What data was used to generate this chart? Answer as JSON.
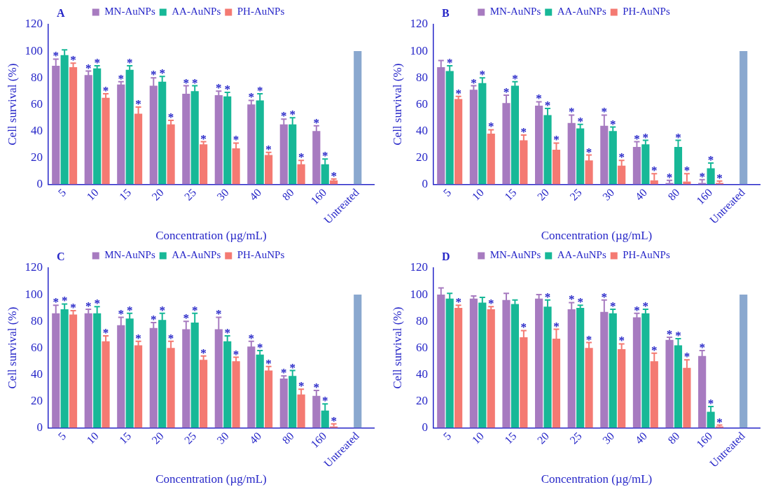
{
  "chart_data": [
    {
      "type": "bar",
      "title": "A",
      "xlabel": "Concentration (µg/mL)",
      "ylabel": "Cell survival (%)",
      "categories": [
        "5",
        "10",
        "15",
        "20",
        "25",
        "30",
        "40",
        "80",
        "160",
        "Untreated"
      ],
      "ylim": [
        0,
        120
      ],
      "yticks": [
        0,
        20,
        40,
        60,
        80,
        100,
        120
      ],
      "grid": false,
      "legend": "top",
      "series": [
        {
          "name": "MN-AuNPs",
          "color": "#a77bc0",
          "values": [
            89,
            82,
            75,
            74,
            68,
            67,
            60,
            45,
            40,
            null
          ],
          "errors": [
            5,
            3,
            2,
            6,
            6,
            3,
            3,
            4,
            4,
            null
          ],
          "value_labels": [
            "*",
            "*",
            "*",
            "*",
            "*",
            "*",
            "*",
            "*",
            "*",
            null
          ]
        },
        {
          "name": "AA-AuNPs",
          "color": "#17b897",
          "values": [
            97,
            87,
            86,
            77,
            70,
            66,
            63,
            45,
            15,
            null
          ],
          "errors": [
            4,
            2,
            3,
            4,
            4,
            3,
            5,
            5,
            4,
            null
          ],
          "value_labels": [
            null,
            "*",
            "*",
            "*",
            "*",
            "*",
            "*",
            "*",
            "*",
            null
          ]
        },
        {
          "name": "PH-AuNPs",
          "color": "#f47a72",
          "values": [
            88,
            65,
            53,
            45,
            30,
            27,
            22,
            15,
            3,
            null
          ],
          "errors": [
            3,
            3,
            5,
            3,
            2,
            4,
            2,
            3,
            1,
            null
          ],
          "value_labels": [
            "*",
            "*",
            "*",
            "*",
            "*",
            "*",
            "*",
            "*",
            "*",
            null
          ]
        },
        {
          "color": "#8aa8cf",
          "values": [
            null,
            null,
            null,
            null,
            null,
            null,
            null,
            null,
            null,
            100
          ]
        }
      ]
    },
    {
      "type": "bar",
      "title": "B",
      "xlabel": "Concentration (µg/mL)",
      "ylabel": "Cell survival (%)",
      "categories": [
        "5",
        "10",
        "15",
        "20",
        "25",
        "30",
        "40",
        "80",
        "160",
        "Untreated"
      ],
      "ylim": [
        0,
        120
      ],
      "yticks": [
        0,
        20,
        40,
        60,
        80,
        100,
        120
      ],
      "grid": false,
      "legend": "top",
      "series": [
        {
          "name": "MN-AuNPs",
          "color": "#a77bc0",
          "values": [
            88,
            71,
            61,
            59,
            46,
            44,
            28,
            1,
            1,
            null
          ],
          "errors": [
            5,
            3,
            6,
            3,
            6,
            8,
            4,
            [
              1,
              3
            ],
            [
              1,
              3.5
            ],
            null
          ],
          "value_labels": [
            null,
            "*",
            "*",
            "*",
            "*",
            "*",
            "*",
            "*",
            "*",
            null
          ]
        },
        {
          "name": "AA-AuNPs",
          "color": "#17b897",
          "values": [
            85,
            76,
            74,
            52,
            42,
            40,
            30,
            28,
            12,
            null
          ],
          "errors": [
            4,
            4,
            3,
            5,
            3,
            3,
            3,
            5,
            4,
            null
          ],
          "value_labels": [
            "*",
            "*",
            "*",
            "*",
            "*",
            "*",
            "*",
            "*",
            "*",
            null
          ]
        },
        {
          "name": "PH-AuNPs",
          "color": "#f47a72",
          "values": [
            64,
            38,
            33,
            26,
            18,
            14,
            3,
            2,
            1,
            null
          ],
          "errors": [
            2,
            3,
            4,
            5,
            4,
            4,
            [
              3,
              8
            ],
            [
              2,
              8
            ],
            [
              1,
              2.5
            ],
            null
          ],
          "value_labels": [
            "*",
            "*",
            "*",
            "*",
            "*",
            "*",
            "*",
            "*",
            "*",
            null
          ]
        },
        {
          "color": "#8aa8cf",
          "values": [
            null,
            null,
            null,
            null,
            null,
            null,
            null,
            null,
            null,
            100
          ]
        }
      ]
    },
    {
      "type": "bar",
      "title": "C",
      "xlabel": "Concentration (µg/mL)",
      "ylabel": "Cell survival (%)",
      "categories": [
        "5",
        "10",
        "15",
        "20",
        "25",
        "30",
        "40",
        "80",
        "160",
        "Untreated"
      ],
      "ylim": [
        0,
        120
      ],
      "yticks": [
        0,
        20,
        40,
        60,
        80,
        100,
        120
      ],
      "grid": false,
      "legend": "top",
      "series": [
        {
          "name": "MN-AuNPs",
          "color": "#a77bc0",
          "values": [
            86,
            86,
            77,
            75,
            74,
            74,
            61,
            37,
            24,
            null
          ],
          "errors": [
            6,
            3,
            6,
            4,
            6,
            9,
            4,
            2,
            4,
            null
          ],
          "value_labels": [
            "*",
            "*",
            "*",
            "*",
            "*",
            "*",
            "*",
            "*",
            "*",
            null
          ]
        },
        {
          "name": "AA-AuNPs",
          "color": "#17b897",
          "values": [
            89,
            86,
            82,
            81,
            79,
            65,
            55,
            39,
            13,
            null
          ],
          "errors": [
            4,
            5,
            4,
            5,
            7,
            4,
            3,
            4,
            5,
            null
          ],
          "value_labels": [
            "*",
            "*",
            "*",
            "*",
            "*",
            "*",
            "*",
            "*",
            "*",
            null
          ]
        },
        {
          "name": "PH-AuNPs",
          "color": "#f47a72",
          "values": [
            85,
            65,
            62,
            60,
            51,
            50,
            43,
            25,
            1,
            null
          ],
          "errors": [
            3,
            4,
            3,
            5,
            3,
            3,
            3,
            4,
            [
              1,
              3
            ],
            null
          ],
          "value_labels": [
            "*",
            "*",
            "*",
            "*",
            "*",
            "*",
            "*",
            "*",
            "*",
            null
          ]
        },
        {
          "color": "#8aa8cf",
          "values": [
            null,
            null,
            null,
            null,
            null,
            null,
            null,
            null,
            null,
            100
          ]
        }
      ]
    },
    {
      "type": "bar",
      "title": "D",
      "xlabel": "Concentration (µg/mL)",
      "ylabel": "Cell survival (%)",
      "categories": [
        "5",
        "10",
        "15",
        "20",
        "25",
        "30",
        "40",
        "80",
        "160",
        "Untreated"
      ],
      "ylim": [
        0,
        120
      ],
      "yticks": [
        0,
        20,
        40,
        60,
        80,
        100,
        120
      ],
      "grid": false,
      "legend": "top",
      "series": [
        {
          "name": "MN-AuNPs",
          "color": "#a77bc0",
          "values": [
            100,
            97,
            96,
            97,
            89,
            87,
            83,
            66,
            54,
            null
          ],
          "errors": [
            5,
            2,
            5,
            3,
            5,
            9,
            3,
            2,
            4,
            null
          ],
          "value_labels": [
            null,
            null,
            null,
            null,
            "*",
            "*",
            "*",
            "*",
            "*",
            null
          ]
        },
        {
          "name": "AA-AuNPs",
          "color": "#17b897",
          "values": [
            97,
            94,
            93,
            91,
            90,
            86,
            86,
            62,
            12,
            null
          ],
          "errors": [
            4,
            4,
            3,
            5,
            2,
            3,
            3,
            5,
            4,
            null
          ],
          "value_labels": [
            null,
            null,
            null,
            "*",
            "*",
            "*",
            "*",
            "*",
            "*",
            null
          ]
        },
        {
          "name": "PH-AuNPs",
          "color": "#f47a72",
          "values": [
            90,
            89,
            68,
            67,
            60,
            59,
            50,
            45,
            1,
            null
          ],
          "errors": [
            2,
            2,
            5,
            7,
            4,
            4,
            6,
            6,
            [
              1,
              2
            ],
            null
          ],
          "value_labels": [
            "*",
            "*",
            "*",
            "*",
            "*",
            "*",
            "*",
            "*",
            "*",
            null
          ]
        },
        {
          "color": "#8aa8cf",
          "values": [
            null,
            null,
            null,
            null,
            null,
            null,
            null,
            null,
            null,
            100
          ]
        }
      ]
    }
  ]
}
